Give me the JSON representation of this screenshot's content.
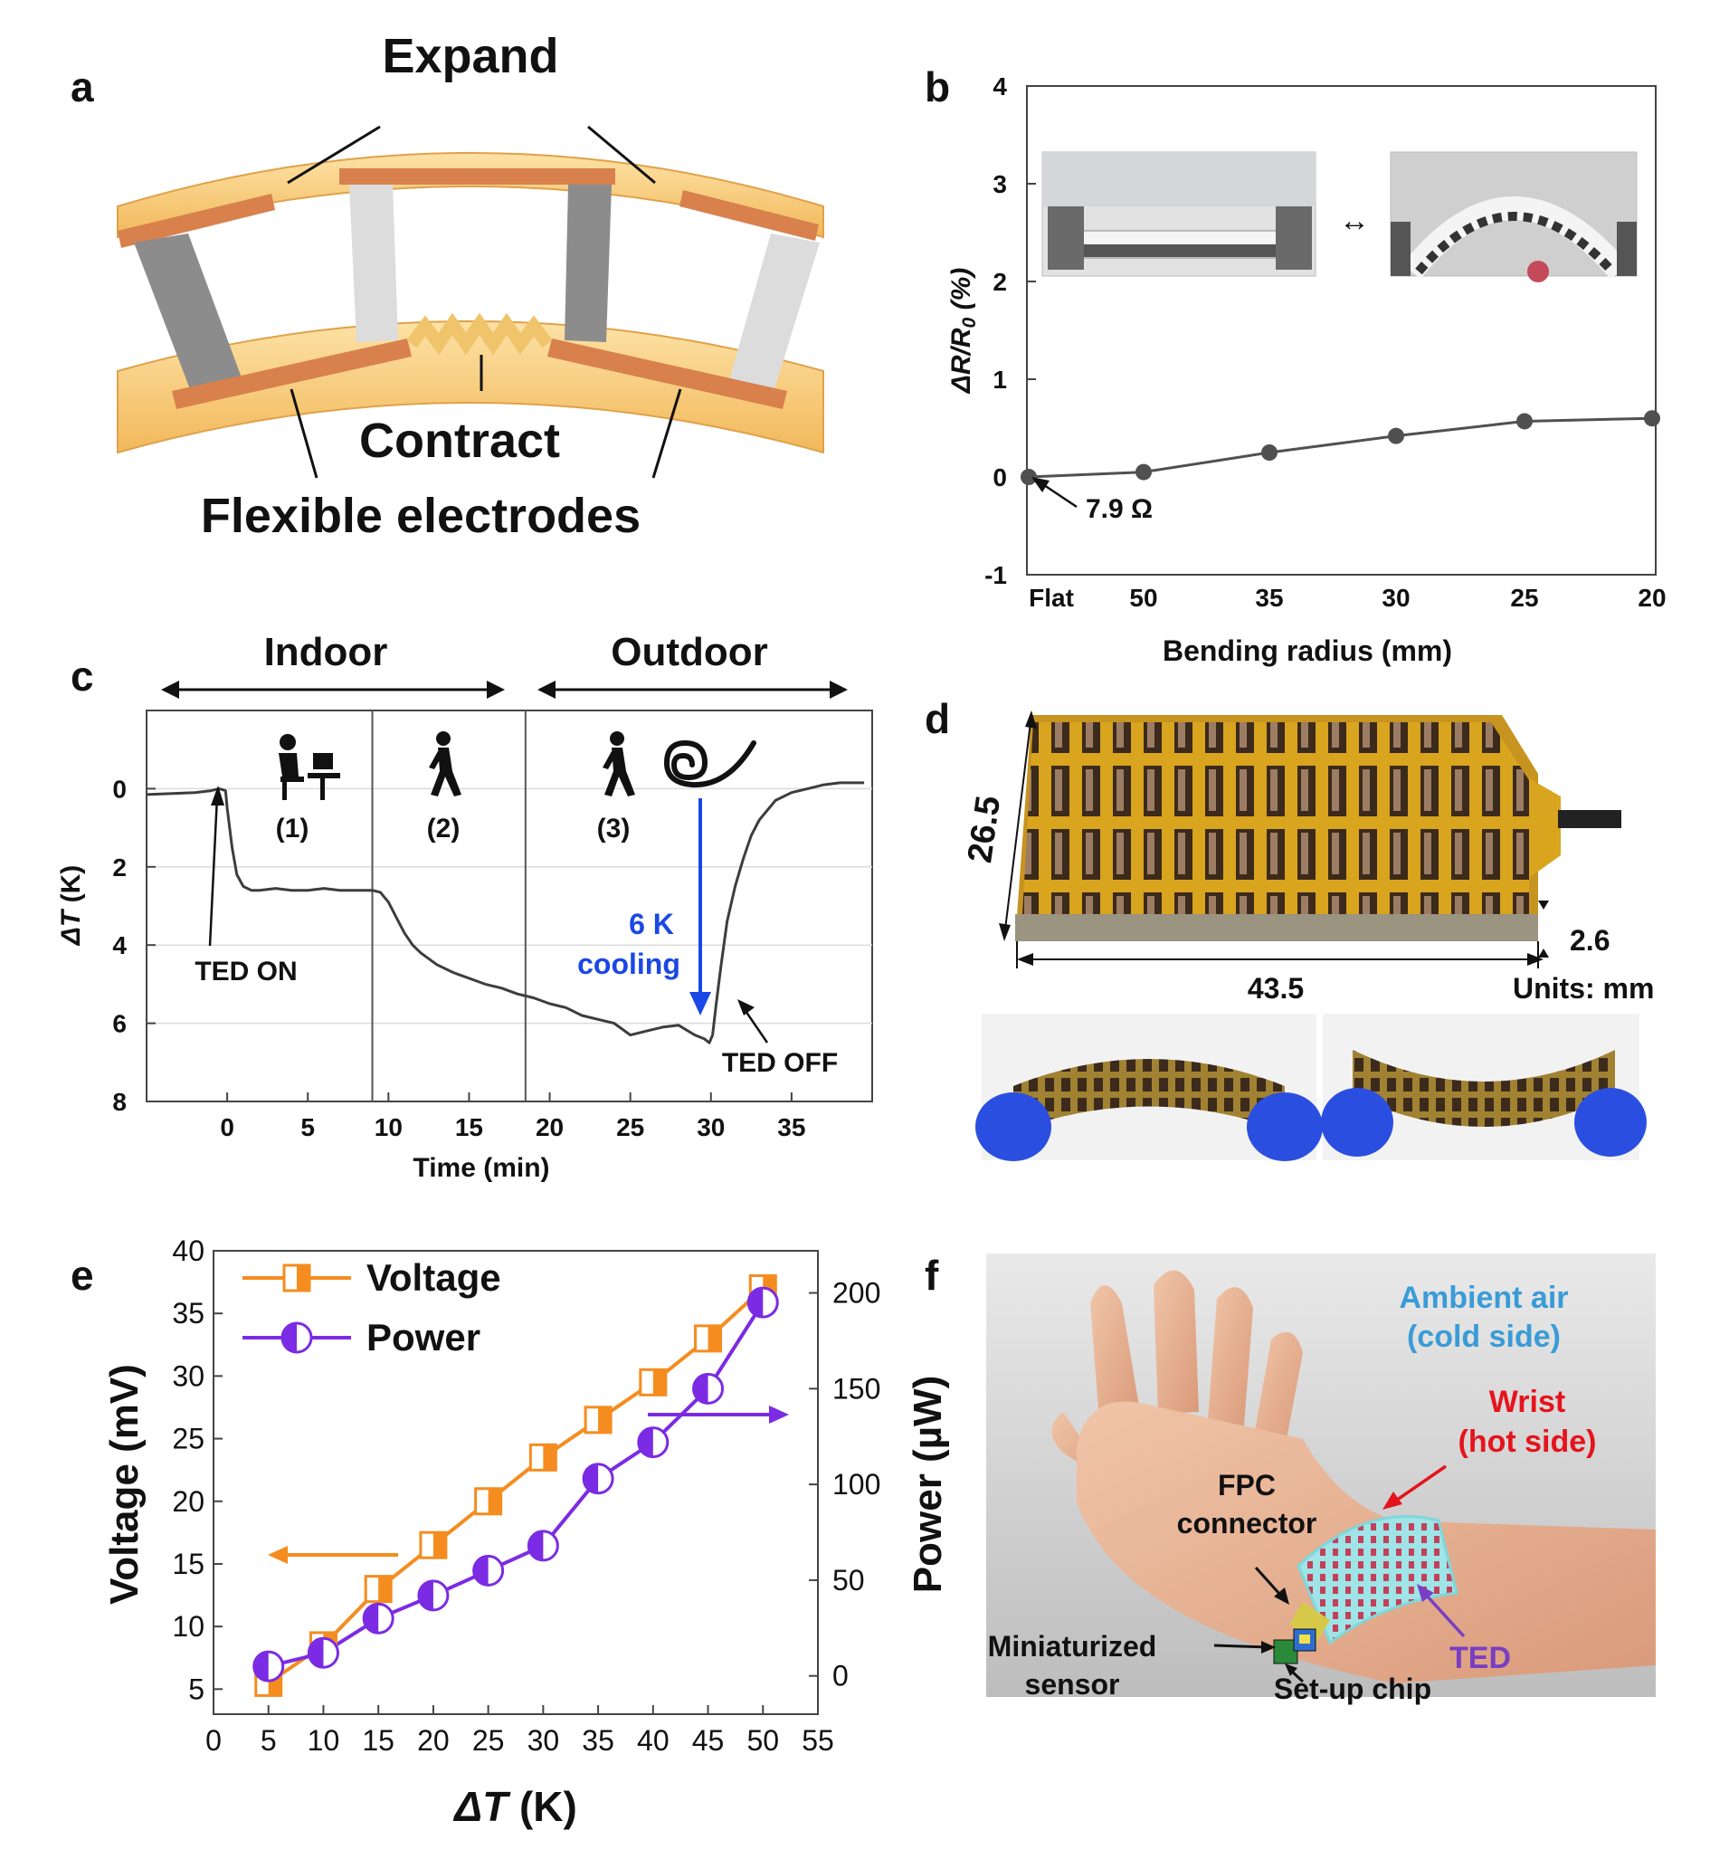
{
  "panels": {
    "a": {
      "label": "a",
      "expand": "Expand",
      "contract": "Contract",
      "electrodes": "Flexible electrodes",
      "colors": {
        "substrate": "#f9cf7a",
        "electrode": "#d8814c",
        "n_leg": "#8c8c8c",
        "p_leg": "#dcdcdc"
      }
    },
    "b": {
      "label": "b",
      "annotation": "7.9 Ω",
      "photo_arrow": "↔"
    },
    "c": {
      "label": "c",
      "indoor": "Indoor",
      "outdoor": "Outdoor",
      "step1": "(1)",
      "step2": "(2)",
      "step3": "(3)",
      "ted_on": "TED ON",
      "ted_off": "TED OFF",
      "cooling_1": "6 K",
      "cooling_2": "cooling",
      "icons": [
        "person-at-desk-icon",
        "walking-person-icon",
        "walking-person-icon",
        "wind-icon"
      ],
      "cooling_color": "#1a47e5"
    },
    "d": {
      "label": "d",
      "dim_height": "26.5",
      "dim_width": "43.5",
      "dim_thickness": "2.6",
      "units": "Units: mm"
    },
    "e": {
      "label": "e",
      "voltage_color": "#f58c1f",
      "power_color": "#7b2be3"
    },
    "f": {
      "label": "f",
      "ambient_1": "Ambient air",
      "ambient_2": "(cold side)",
      "wrist_1": "Wrist",
      "wrist_2": "(hot side)",
      "fpc_1": "FPC",
      "fpc_2": "connector",
      "sensor_1": "Miniaturized",
      "sensor_2": "sensor",
      "chip": "Set-up chip",
      "ted": "TED",
      "colors": {
        "ambient": "#3a9bd6",
        "wrist": "#e5141c",
        "ted": "#7a3ec4"
      }
    }
  },
  "chart_data": [
    {
      "panel": "b",
      "type": "line",
      "categories": [
        "Flat",
        "50",
        "35",
        "30",
        "25",
        "20"
      ],
      "values": [
        0,
        0.05,
        0.25,
        0.42,
        0.57,
        0.6
      ],
      "xlabel": "Bending radius (mm)",
      "ylabel_parts": [
        "ΔR",
        "/",
        "R",
        "0",
        " (%)"
      ],
      "ylim": [
        -1,
        4
      ],
      "yticks": [
        "-1",
        "0",
        "1",
        "2",
        "3",
        "4"
      ],
      "grid": false,
      "color": "#505050"
    },
    {
      "panel": "c",
      "type": "line",
      "xlabel": "Time (min)",
      "ylabel_parts": [
        "ΔT",
        " (K)"
      ],
      "xlim": [
        -5,
        40
      ],
      "ylim": [
        8,
        -2
      ],
      "xticks": [
        "0",
        "5",
        "10",
        "15",
        "20",
        "25",
        "30",
        "35"
      ],
      "yticks": [
        "0",
        "2",
        "4",
        "6",
        "8"
      ],
      "grid": true,
      "dividers": [
        9,
        18.5
      ],
      "series": [
        {
          "x": [
            -5,
            -2,
            -1,
            -0.5,
            -0.1,
            0,
            0.3,
            0.6,
            1,
            1.5,
            2,
            3,
            4,
            5,
            6,
            7,
            8,
            9,
            9.5,
            10,
            10.5,
            11,
            11.5,
            12,
            13,
            14,
            15,
            16,
            17,
            18,
            19,
            20,
            21,
            22,
            23,
            24,
            25,
            26,
            27,
            28,
            29,
            29.6,
            29.9,
            30.1,
            30.3,
            30.6,
            31,
            31.5,
            32,
            32.5,
            33,
            34,
            35,
            36,
            37,
            38,
            39.5
          ],
          "y": [
            0.15,
            0.1,
            0.05,
            0,
            0.05,
            0.5,
            1.5,
            2.2,
            2.5,
            2.6,
            2.6,
            2.55,
            2.6,
            2.6,
            2.55,
            2.6,
            2.6,
            2.6,
            2.65,
            2.9,
            3.3,
            3.7,
            4.0,
            4.2,
            4.5,
            4.7,
            4.85,
            5.0,
            5.1,
            5.25,
            5.35,
            5.5,
            5.6,
            5.8,
            5.9,
            6.0,
            6.3,
            6.2,
            6.1,
            6.05,
            6.3,
            6.4,
            6.5,
            6.3,
            5.6,
            4.6,
            3.4,
            2.5,
            1.8,
            1.2,
            0.8,
            0.3,
            0.1,
            0.0,
            -0.1,
            -0.15,
            -0.15
          ]
        }
      ],
      "color": "#3d3d3d"
    },
    {
      "panel": "e",
      "type": "line",
      "x": [
        5,
        10,
        15,
        20,
        25,
        30,
        35,
        40,
        45,
        50
      ],
      "xlabel_parts": [
        "ΔT",
        " (K)"
      ],
      "xlim": [
        0,
        55
      ],
      "xticks": [
        "0",
        "5",
        "10",
        "15",
        "20",
        "25",
        "30",
        "35",
        "40",
        "45",
        "50",
        "55"
      ],
      "grid": false,
      "legend": "top-left",
      "series": [
        {
          "name": "Voltage",
          "axis": "left",
          "values": [
            5.5,
            8.5,
            13,
            16.5,
            20,
            23.5,
            26.5,
            29.5,
            33,
            37
          ]
        },
        {
          "name": "Power",
          "axis": "right",
          "values": [
            5,
            12,
            30,
            42,
            55,
            68,
            103,
            122,
            150,
            195
          ]
        }
      ],
      "left_axis": {
        "label": "Voltage (mV)",
        "lim": [
          3,
          40
        ],
        "ticks": [
          "5",
          "10",
          "15",
          "20",
          "25",
          "30",
          "35",
          "40"
        ]
      },
      "right_axis": {
        "label": "Power (µW)",
        "lim": [
          -20,
          222
        ],
        "ticks": [
          "0",
          "50",
          "100",
          "150",
          "200"
        ]
      }
    }
  ]
}
